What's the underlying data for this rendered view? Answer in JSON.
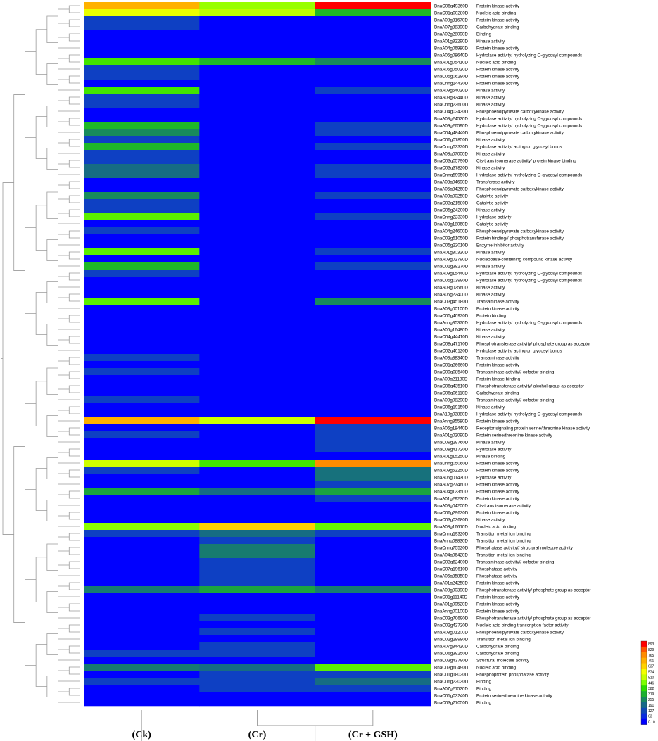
{
  "chart_data": {
    "type": "heatmap",
    "columns": [
      "(Ck)",
      "(Cr)",
      "(Cr + GSH)"
    ],
    "colorbar": {
      "ticks": [
        "893",
        "829",
        "765",
        "701",
        "637",
        "574",
        "510",
        "446",
        "382",
        "319",
        "255",
        "191",
        "127",
        "63",
        "0.10"
      ],
      "colors": [
        "#ff0000",
        "#ff5500",
        "#ff8c00",
        "#ffb000",
        "#ffd200",
        "#f4ff00",
        "#c8ff00",
        "#7cff00",
        "#2cdc00",
        "#1cb030",
        "#188860",
        "#166888",
        "#1048b8",
        "#0a2ce0",
        "#0000ff"
      ],
      "min": 0.1,
      "max": 893
    },
    "rows": [
      {
        "gene": "BnaC06g49360D",
        "func": "Protein kinase activity",
        "values": [
          700,
          470,
          893
        ]
      },
      {
        "gene": "BnaC01g00280D",
        "func": "Nucleic acid binding",
        "values": [
          560,
          500,
          330
        ]
      },
      {
        "gene": "BnaA08g31670D",
        "func": "Protein kinase activity",
        "values": [
          110,
          0.1,
          0.1
        ]
      },
      {
        "gene": "BnaA07g38390D",
        "func": "Carbohydrate binding",
        "values": [
          110,
          0.1,
          0.1
        ]
      },
      {
        "gene": "BnaA02g28090D",
        "func": "Binding",
        "values": [
          0.1,
          0.1,
          0.1
        ]
      },
      {
        "gene": "BnaA01g32290D",
        "func": "Kinase activity",
        "values": [
          0.1,
          0.1,
          0.1
        ]
      },
      {
        "gene": "BnaA04g06980D",
        "func": "Protein kinase activity",
        "values": [
          0.1,
          0.1,
          0.1
        ]
      },
      {
        "gene": "BnaA05g08640D",
        "func": "Hydrolase activity/ hydrolyzing O-glycosyl compounds",
        "values": [
          0.1,
          0.1,
          0.1
        ]
      },
      {
        "gene": "BnaA01g05410D",
        "func": "Nucleic acid binding",
        "values": [
          400,
          330,
          260
        ]
      },
      {
        "gene": "BnaA06g05020D",
        "func": "Protein kinase activity",
        "values": [
          110,
          0.1,
          0.1
        ]
      },
      {
        "gene": "BnaC05g06280D",
        "func": "Protein kinase activity",
        "values": [
          110,
          0.1,
          0.1
        ]
      },
      {
        "gene": "BnaCnng14430D",
        "func": "Protein kinase activity",
        "values": [
          0.1,
          0.1,
          0.1
        ]
      },
      {
        "gene": "BnaA09g54020D",
        "func": "Kinase activity",
        "values": [
          400,
          0.1,
          110
        ]
      },
      {
        "gene": "BnaA03g32440D",
        "func": "Kinase activity",
        "values": [
          110,
          0.1,
          0.1
        ]
      },
      {
        "gene": "BnaCnng23600D",
        "func": "Kinase activity",
        "values": [
          110,
          0.1,
          0.1
        ]
      },
      {
        "gene": "BnaC04g02430D",
        "func": "Phosphoenolpyruvate carboxykinase activity",
        "values": [
          0.1,
          0.1,
          0.1
        ]
      },
      {
        "gene": "BnaA03g24520D",
        "func": "Hydrolase activity/ hydrolyzing O-glycosyl compounds",
        "values": [
          0.1,
          0.1,
          0.1
        ]
      },
      {
        "gene": "BnaA09g26590D",
        "func": "Hydrolase activity/ hydrolyzing O-glycosyl compounds",
        "values": [
          330,
          0.1,
          110
        ]
      },
      {
        "gene": "BnaC04g48440D",
        "func": "Phosphoenolpyruvate carboxykinase activity",
        "values": [
          260,
          0.1,
          110
        ]
      },
      {
        "gene": "BnaC06g07850D",
        "func": "Kinase activity",
        "values": [
          110,
          0.1,
          0.1
        ]
      },
      {
        "gene": "BnaCnng53320D",
        "func": "Hydrolase activity/ acting on glycosyl bonds",
        "values": [
          330,
          0.1,
          110
        ]
      },
      {
        "gene": "BnaA08g07000D",
        "func": "Kinase activity",
        "values": [
          110,
          0.1,
          0.1
        ]
      },
      {
        "gene": "BnaC03g05790D",
        "func": "Cis-trans isomerase activity/ protein kinase binding",
        "values": [
          110,
          0.1,
          0.1
        ]
      },
      {
        "gene": "BnaC03g37820D",
        "func": "Kinase activity",
        "values": [
          200,
          0.1,
          110
        ]
      },
      {
        "gene": "BnaCnng59950D",
        "func": "Hydrolase activity/ hydrolyzing O-glycosyl compounds",
        "values": [
          200,
          0.1,
          110
        ]
      },
      {
        "gene": "BnaA03g04690D",
        "func": "Transferase activity",
        "values": [
          0.1,
          0.1,
          0.1
        ]
      },
      {
        "gene": "BnaA05g34260D",
        "func": "Phosphoenolpyruvate carboxykinase activity",
        "values": [
          0.1,
          0.1,
          0.1
        ]
      },
      {
        "gene": "BnaA09g00250D",
        "func": "Catalytic activity",
        "values": [
          260,
          0.1,
          110
        ]
      },
      {
        "gene": "BnaC03g21580D",
        "func": "Catalytic activity",
        "values": [
          110,
          0.1,
          0.1
        ]
      },
      {
        "gene": "BnaC05g24200D",
        "func": "Kinase activity",
        "values": [
          110,
          0.1,
          0.1
        ]
      },
      {
        "gene": "BnaCnng22330D",
        "func": "Hydrolase activity",
        "values": [
          420,
          0.1,
          110
        ]
      },
      {
        "gene": "BnaA03g18060D",
        "func": "Catalytic activity",
        "values": [
          0.1,
          0.1,
          0.1
        ]
      },
      {
        "gene": "BnaA04g24600D",
        "func": "Phosphoenolpyruvate carboxykinase activity",
        "values": [
          110,
          0.1,
          0.1
        ]
      },
      {
        "gene": "BnaC03g51050D",
        "func": "Protein binding// phosphotransferase activity",
        "values": [
          0.1,
          0.1,
          0.1
        ]
      },
      {
        "gene": "BnaC05g22010D",
        "func": "Enzyme inhibitor activity",
        "values": [
          0.1,
          0.1,
          0.1
        ]
      },
      {
        "gene": "BnaA01g30320D",
        "func": "Kinase activity",
        "values": [
          420,
          0.1,
          110
        ]
      },
      {
        "gene": "BnaA09g02790D",
        "func": "Nucleobase-containing compound kinase activity",
        "values": [
          0.1,
          0.1,
          0.1
        ]
      },
      {
        "gene": "BnaC01g38270D",
        "func": "Kinase activity",
        "values": [
          330,
          0.1,
          110
        ]
      },
      {
        "gene": "BnaA09g15440D",
        "func": "Hydrolase activity/ hydrolyzing O-glycosyl compounds",
        "values": [
          110,
          0.1,
          0.1
        ]
      },
      {
        "gene": "BnaC05g03990D",
        "func": "Hydrolase activity/ hydrolyzing O-glycosyl compounds",
        "values": [
          0.1,
          0.1,
          0.1
        ]
      },
      {
        "gene": "BnaA03g02560D",
        "func": "Kinase activity",
        "values": [
          0.1,
          0.1,
          0.1
        ]
      },
      {
        "gene": "BnaA05g22400D",
        "func": "Kinase activity",
        "values": [
          0.1,
          0.1,
          0.1
        ]
      },
      {
        "gene": "BnaC03g45180D",
        "func": "Transaminase activity",
        "values": [
          420,
          0.1,
          260
        ]
      },
      {
        "gene": "BnaA03g00100D",
        "func": "Protein kinase activity",
        "values": [
          0.1,
          0.1,
          0.1
        ]
      },
      {
        "gene": "BnaC05g40920D",
        "func": "Protein binding",
        "values": [
          0.1,
          0.1,
          0.1
        ]
      },
      {
        "gene": "BnaAnng35370D",
        "func": "Hydrolase activity/ hydrolyzing O-glycosyl compounds",
        "values": [
          0.1,
          0.1,
          0.1
        ]
      },
      {
        "gene": "BnaA05g16480D",
        "func": "Kinase activity",
        "values": [
          0.1,
          0.1,
          0.1
        ]
      },
      {
        "gene": "BnaC04g44410D",
        "func": "Kinase activity",
        "values": [
          0.1,
          0.1,
          0.1
        ]
      },
      {
        "gene": "BnaC08g47170D",
        "func": "Phosphotransferase activity/ phosphate group as acceptor",
        "values": [
          0.1,
          0.1,
          0.1
        ]
      },
      {
        "gene": "BnaC02g40120D",
        "func": "Hydrolase activity/ acting on glycosyl bonds",
        "values": [
          0.1,
          0.1,
          0.1
        ]
      },
      {
        "gene": "BnaA03g38340D",
        "func": "Transaminase activity",
        "values": [
          110,
          0.1,
          0.1
        ]
      },
      {
        "gene": "BnaC01g36660D",
        "func": "Protein kinase activity",
        "values": [
          0.1,
          0.1,
          0.1
        ]
      },
      {
        "gene": "BnaC09g08540D",
        "func": "Transaminase activity// cofactor binding",
        "values": [
          110,
          0.1,
          0.1
        ]
      },
      {
        "gene": "BnaA09g21130D",
        "func": "Protein kinase binding",
        "values": [
          0.1,
          0.1,
          0.1
        ]
      },
      {
        "gene": "BnaC06g43510D",
        "func": "Phosphotransferase activity/ alcohol group as acceptor",
        "values": [
          0.1,
          0.1,
          0.1
        ]
      },
      {
        "gene": "BnaC06g06110D",
        "func": "Carbohydrate binding",
        "values": [
          0.1,
          0.1,
          0.1
        ]
      },
      {
        "gene": "BnaA09g08290D",
        "func": "Transaminase activity// cofactor binding",
        "values": [
          110,
          0.1,
          0.1
        ]
      },
      {
        "gene": "BnaC06g19150D",
        "func": "Kinase activity",
        "values": [
          0.1,
          0.1,
          0.1
        ]
      },
      {
        "gene": "BnaA10g03880D",
        "func": "Hydrolase activity/ hydrolyzing O-glycosyl compounds",
        "values": [
          0.1,
          0.1,
          0.1
        ]
      },
      {
        "gene": "BnaAnng35580D",
        "func": "Protein kinase activity",
        "values": [
          700,
          520,
          893
        ]
      },
      {
        "gene": "BnaA06g18440D",
        "func": "Receptor signaling protein serine/threonine kinase activity",
        "values": [
          0.1,
          0.1,
          110
        ]
      },
      {
        "gene": "BnaA01g02090D",
        "func": "Protein serine/threonine kinase activity",
        "values": [
          110,
          0.1,
          110
        ]
      },
      {
        "gene": "BnaC09g29760D",
        "func": "Kinase activity",
        "values": [
          0.1,
          0.1,
          110
        ]
      },
      {
        "gene": "BnaC08g41720D",
        "func": "Hydrolase activity",
        "values": [
          0.1,
          0.1,
          110
        ]
      },
      {
        "gene": "BnaA01g15250D",
        "func": "Kinase binding",
        "values": [
          0.1,
          0.1,
          0.1
        ]
      },
      {
        "gene": "BnaUnng05060D",
        "func": "Protein kinase activity",
        "values": [
          520,
          400,
          765
        ]
      },
      {
        "gene": "BnaA09g52250D",
        "func": "Protein kinase activity",
        "values": [
          110,
          0.1,
          210
        ]
      },
      {
        "gene": "BnaA06g01430D",
        "func": "Hydrolase activity",
        "values": [
          0.1,
          0.1,
          210
        ]
      },
      {
        "gene": "BnaA07g27460D",
        "func": "Protein kinase activity",
        "values": [
          0.1,
          0.1,
          110
        ]
      },
      {
        "gene": "BnaA04g12350D",
        "func": "Protein kinase activity",
        "values": [
          300,
          200,
          300
        ]
      },
      {
        "gene": "BnaA01g29230D",
        "func": "Protein kinase activity",
        "values": [
          0.1,
          0.1,
          110
        ]
      },
      {
        "gene": "BnaA03g04200D",
        "func": "Cis-trans isomerase activity",
        "values": [
          0.1,
          0.1,
          0.1
        ]
      },
      {
        "gene": "BnaC06g29630D",
        "func": "Protein kinase activity",
        "values": [
          0.1,
          0.1,
          0.1
        ]
      },
      {
        "gene": "BnaC03g03680D",
        "func": "Kinase activity",
        "values": [
          0.1,
          0.1,
          0.1
        ]
      },
      {
        "gene": "BnaA08g16610D",
        "func": "Nucleic acid binding",
        "values": [
          460,
          640,
          430
        ]
      },
      {
        "gene": "BnaCnng19320D",
        "func": "Transition metal ion binding",
        "values": [
          110,
          200,
          110
        ]
      },
      {
        "gene": "BnaAnng08830D",
        "func": "Transition metal ion binding",
        "values": [
          0.1,
          110,
          0.1
        ]
      },
      {
        "gene": "BnaCnng75520D",
        "func": "Phosphatase activity// structural molecule activity",
        "values": [
          0.1,
          230,
          0.1
        ]
      },
      {
        "gene": "BnaA04g06420D",
        "func": "Transition metal ion binding",
        "values": [
          0.1,
          230,
          0.1
        ]
      },
      {
        "gene": "BnaC03g62400D",
        "func": "Transaminase activity// cofactor binding",
        "values": [
          0.1,
          110,
          0.1
        ]
      },
      {
        "gene": "BnaC07g19610D",
        "func": "Phosphatase activity",
        "values": [
          0.1,
          110,
          0.1
        ]
      },
      {
        "gene": "BnaA06g35850D",
        "func": "Phosphatase activity",
        "values": [
          0.1,
          110,
          0.1
        ]
      },
      {
        "gene": "BnaA01g24250D",
        "func": "Protein kinase activity",
        "values": [
          0.1,
          110,
          0.1
        ]
      },
      {
        "gene": "BnaA08g00390D",
        "func": "Phosphotransferase activity/ phosphate group as acceptor",
        "values": [
          230,
          300,
          230
        ]
      },
      {
        "gene": "BnaC01g11140D",
        "func": "Protein kinase activity",
        "values": [
          0.1,
          0.1,
          0.1
        ]
      },
      {
        "gene": "BnaA01g09520D",
        "func": "Protein kinase activity",
        "values": [
          0.1,
          0.1,
          0.1
        ]
      },
      {
        "gene": "BnaAnng00100D",
        "func": "Protein kinase activity",
        "values": [
          0.1,
          0.1,
          0.1
        ]
      },
      {
        "gene": "BnaC03g70690D",
        "func": "Phosphotransferase activity/ phosphate group as acceptor",
        "values": [
          0.1,
          110,
          0.1
        ]
      },
      {
        "gene": "BnaC02g42720D",
        "func": "Nucleic acid binding transcription factor activity",
        "values": [
          0.1,
          0.1,
          0.1
        ]
      },
      {
        "gene": "BnaA08g01200D",
        "func": "Phosphoenolpyruvate carboxykinase activity",
        "values": [
          0.1,
          110,
          0.1
        ]
      },
      {
        "gene": "BnaC02g28980D",
        "func": "Transition metal ion binding",
        "values": [
          0.1,
          0.1,
          0.1
        ]
      },
      {
        "gene": "BnaA07g34420D",
        "func": "Carbohydrate binding",
        "values": [
          0.1,
          110,
          0.1
        ]
      },
      {
        "gene": "BnaC06g39250D",
        "func": "Carbohydrate binding",
        "values": [
          110,
          110,
          0.1
        ]
      },
      {
        "gene": "BnaC03g43790D",
        "func": "Structural molecule activity",
        "values": [
          0.1,
          0.1,
          0.1
        ]
      },
      {
        "gene": "BnaC03g60490D",
        "func": "Nucleic acid binding",
        "values": [
          230,
          200,
          420
        ]
      },
      {
        "gene": "BnaC01g18020D",
        "func": "Phosphoprotein phosphatase activity",
        "values": [
          0.1,
          110,
          110
        ]
      },
      {
        "gene": "BnaC06g22030D",
        "func": "Binding",
        "values": [
          110,
          110,
          200
        ]
      },
      {
        "gene": "BnaA07g21520D",
        "func": "Binding",
        "values": [
          0.1,
          110,
          110
        ]
      },
      {
        "gene": "BnaC01g03240D",
        "func": "Protein serine/threonine kinase activity",
        "values": [
          0.1,
          0.1,
          0.1
        ]
      },
      {
        "gene": "BnaC03g77050D",
        "func": "Binding",
        "values": [
          0.1,
          0.1,
          0.1
        ]
      }
    ]
  }
}
